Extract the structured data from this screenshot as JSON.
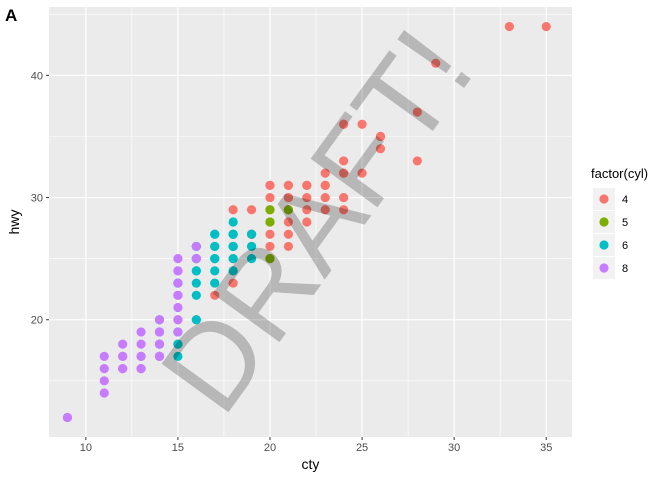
{
  "tag": "A",
  "watermark": "DRAFT!",
  "chart_data": {
    "type": "scatter",
    "title": "",
    "xlabel": "cty",
    "ylabel": "hwy",
    "xlim": [
      8.0,
      36.4
    ],
    "ylim": [
      10.4,
      45.6
    ],
    "xticks": [
      10,
      15,
      20,
      25,
      30,
      35
    ],
    "yticks": [
      20,
      30,
      40
    ],
    "grid": true,
    "legend": {
      "title": "factor(cyl)",
      "position": "right",
      "entries": [
        {
          "label": "4",
          "color": "#F8766D"
        },
        {
          "label": "5",
          "color": "#7CAE00"
        },
        {
          "label": "6",
          "color": "#00BFC4"
        },
        {
          "label": "8",
          "color": "#C77CFF"
        }
      ]
    },
    "series": [
      {
        "name": "4",
        "color": "#F8766D",
        "points": [
          [
            18,
            29
          ],
          [
            21,
            29
          ],
          [
            20,
            31
          ],
          [
            21,
            30
          ],
          [
            18,
            26
          ],
          [
            19,
            26
          ],
          [
            20,
            28
          ],
          [
            20,
            27
          ],
          [
            24,
            33
          ],
          [
            19,
            27
          ],
          [
            18,
            25
          ],
          [
            20,
            30
          ],
          [
            21,
            26
          ],
          [
            28,
            33
          ],
          [
            24,
            32
          ],
          [
            25,
            32
          ],
          [
            23,
            29
          ],
          [
            24,
            32
          ],
          [
            35,
            44
          ],
          [
            24,
            29
          ],
          [
            21,
            27
          ],
          [
            22,
            30
          ],
          [
            24,
            30
          ],
          [
            23,
            31
          ],
          [
            33,
            44
          ],
          [
            18,
            27
          ],
          [
            22,
            29
          ],
          [
            21,
            31
          ],
          [
            26,
            35
          ],
          [
            25,
            36
          ],
          [
            29,
            41
          ],
          [
            26,
            34
          ],
          [
            28,
            37
          ],
          [
            19,
            27
          ],
          [
            18,
            24
          ],
          [
            18,
            23
          ],
          [
            20,
            26
          ],
          [
            21,
            28
          ],
          [
            22,
            31
          ],
          [
            20,
            25
          ],
          [
            15,
            20
          ],
          [
            17,
            22
          ],
          [
            16,
            20
          ],
          [
            23,
            32
          ],
          [
            24,
            36
          ],
          [
            21,
            29
          ],
          [
            19,
            29
          ],
          [
            22,
            28
          ],
          [
            21,
            30
          ],
          [
            24,
            36
          ],
          [
            26,
            35
          ],
          [
            23,
            31
          ],
          [
            21,
            31
          ],
          [
            20,
            29
          ],
          [
            19,
            27
          ],
          [
            22,
            31
          ],
          [
            23,
            30
          ],
          [
            20,
            31
          ],
          [
            15,
            18
          ]
        ]
      },
      {
        "name": "5",
        "color": "#7CAE00",
        "points": [
          [
            21,
            29
          ],
          [
            20,
            28
          ],
          [
            20,
            29
          ],
          [
            20,
            25
          ]
        ]
      },
      {
        "name": "6",
        "color": "#00BFC4",
        "points": [
          [
            16,
            26
          ],
          [
            18,
            27
          ],
          [
            17,
            25
          ],
          [
            16,
            23
          ],
          [
            15,
            17
          ],
          [
            17,
            26
          ],
          [
            16,
            25
          ],
          [
            17,
            24
          ],
          [
            16,
            26
          ],
          [
            15,
            23
          ],
          [
            17,
            27
          ],
          [
            18,
            26
          ],
          [
            18,
            28
          ],
          [
            18,
            24
          ],
          [
            19,
            27
          ],
          [
            16,
            22
          ],
          [
            17,
            26
          ],
          [
            14,
            17
          ],
          [
            15,
            19
          ],
          [
            16,
            20
          ],
          [
            15,
            18
          ],
          [
            14,
            18
          ],
          [
            19,
            25
          ],
          [
            18,
            25
          ],
          [
            17,
            23
          ],
          [
            18,
            26
          ],
          [
            16,
            24
          ],
          [
            17,
            27
          ],
          [
            16,
            25
          ],
          [
            15,
            23
          ],
          [
            16,
            26
          ],
          [
            18,
            26
          ],
          [
            19,
            26
          ],
          [
            18,
            27
          ],
          [
            14,
            20
          ],
          [
            16,
            24
          ],
          [
            17,
            25
          ],
          [
            18,
            27
          ],
          [
            14,
            19
          ]
        ]
      },
      {
        "name": "8",
        "color": "#C77CFF",
        "points": [
          [
            15,
            25
          ],
          [
            14,
            20
          ],
          [
            16,
            26
          ],
          [
            15,
            24
          ],
          [
            14,
            19
          ],
          [
            11,
            15
          ],
          [
            11,
            14
          ],
          [
            12,
            16
          ],
          [
            11,
            17
          ],
          [
            13,
            19
          ],
          [
            9,
            12
          ],
          [
            12,
            17
          ],
          [
            15,
            22
          ],
          [
            15,
            21
          ],
          [
            16,
            25
          ],
          [
            15,
            23
          ],
          [
            13,
            18
          ],
          [
            14,
            17
          ],
          [
            13,
            17
          ],
          [
            12,
            18
          ],
          [
            15,
            20
          ],
          [
            11,
            16
          ],
          [
            14,
            18
          ],
          [
            12,
            17
          ],
          [
            13,
            16
          ],
          [
            15,
            19
          ],
          [
            12,
            16
          ],
          [
            13,
            17
          ],
          [
            9,
            12
          ],
          [
            13,
            16
          ],
          [
            14,
            17
          ],
          [
            15,
            22
          ],
          [
            15,
            24
          ],
          [
            14,
            19
          ]
        ]
      }
    ]
  }
}
